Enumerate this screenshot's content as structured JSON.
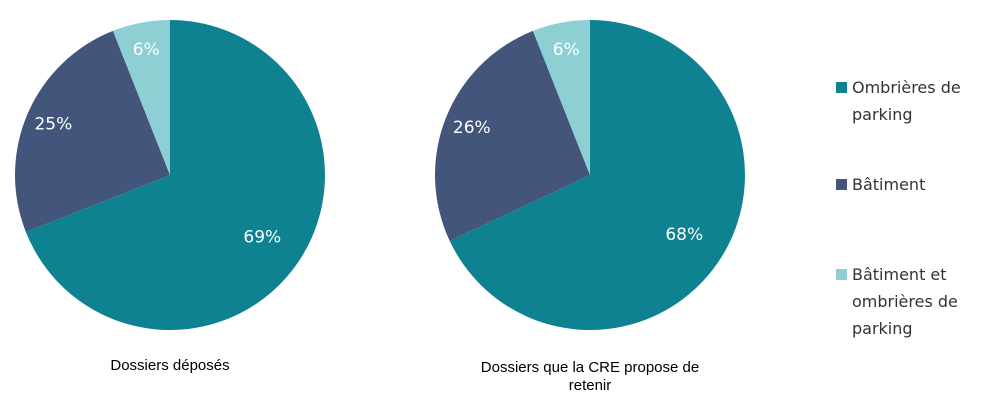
{
  "chart_data": [
    {
      "type": "pie",
      "title": "Dossiers déposés",
      "categories": [
        "Ombrières de parking",
        "Bâtiment",
        "Bâtiment et ombrières de parking"
      ],
      "values": [
        69,
        25,
        6
      ],
      "value_labels": [
        "69%",
        "25%",
        "6%"
      ],
      "colors": [
        "#0e8290",
        "#43557a",
        "#8ecfd3"
      ]
    },
    {
      "type": "pie",
      "title": "Dossiers que la CRE propose de retenir",
      "categories": [
        "Ombrières de parking",
        "Bâtiment",
        "Bâtiment et ombrières de parking"
      ],
      "values": [
        68,
        26,
        6
      ],
      "value_labels": [
        "68%",
        "26%",
        "6%"
      ],
      "colors": [
        "#0e8290",
        "#43557a",
        "#8ecfd3"
      ]
    }
  ]
}
